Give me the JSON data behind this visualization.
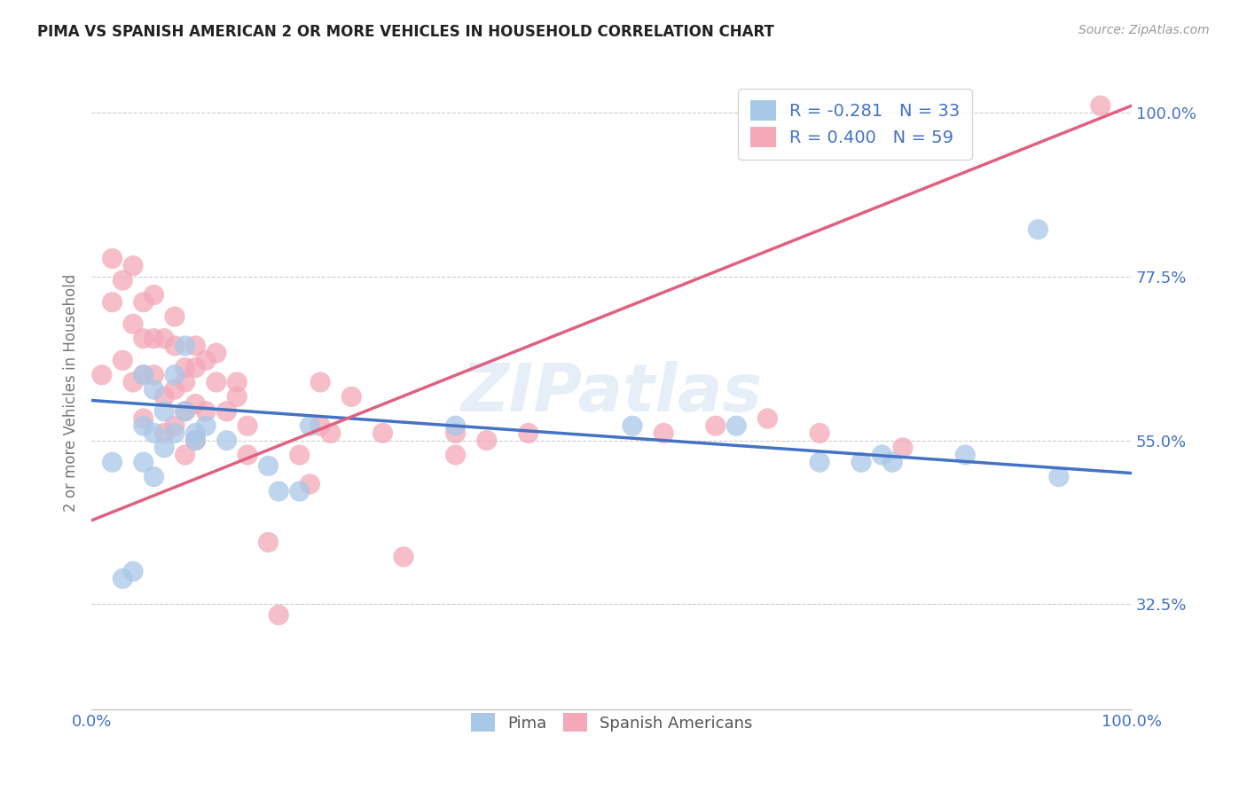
{
  "title": "PIMA VS SPANISH AMERICAN 2 OR MORE VEHICLES IN HOUSEHOLD CORRELATION CHART",
  "source_text": "Source: ZipAtlas.com",
  "ylabel": "2 or more Vehicles in Household",
  "watermark": "ZIPatlas",
  "legend_pima_r": "R = -0.281",
  "legend_pima_n": "N = 33",
  "legend_spanish_r": "R = 0.400",
  "legend_spanish_n": "N = 59",
  "pima_color": "#a8c8e8",
  "spanish_color": "#f4a8b8",
  "pima_line_color": "#4472c4",
  "spanish_line_color": "#e06080",
  "grid_color": "#cccccc",
  "tick_color": "#4472c4",
  "axis_label_color": "#777777",
  "ytick_values": [
    0.325,
    0.55,
    0.775,
    1.0
  ],
  "ytick_labels": [
    "32.5%",
    "55.0%",
    "77.5%",
    "100.0%"
  ],
  "xlim": [
    0.0,
    1.0
  ],
  "ylim": [
    0.18,
    1.05
  ],
  "pima_scatter_x": [
    0.02,
    0.03,
    0.04,
    0.05,
    0.05,
    0.05,
    0.06,
    0.06,
    0.06,
    0.07,
    0.07,
    0.08,
    0.08,
    0.09,
    0.09,
    0.1,
    0.1,
    0.11,
    0.13,
    0.17,
    0.18,
    0.2,
    0.21,
    0.35,
    0.52,
    0.62,
    0.7,
    0.74,
    0.76,
    0.77,
    0.84,
    0.91,
    0.93
  ],
  "pima_scatter_y": [
    0.52,
    0.36,
    0.37,
    0.64,
    0.57,
    0.52,
    0.62,
    0.56,
    0.5,
    0.59,
    0.54,
    0.64,
    0.56,
    0.68,
    0.59,
    0.56,
    0.55,
    0.57,
    0.55,
    0.515,
    0.48,
    0.48,
    0.57,
    0.57,
    0.57,
    0.57,
    0.52,
    0.52,
    0.53,
    0.52,
    0.53,
    0.84,
    0.5
  ],
  "spanish_scatter_x": [
    0.01,
    0.02,
    0.02,
    0.03,
    0.03,
    0.04,
    0.04,
    0.04,
    0.05,
    0.05,
    0.05,
    0.05,
    0.06,
    0.06,
    0.06,
    0.07,
    0.07,
    0.07,
    0.08,
    0.08,
    0.08,
    0.09,
    0.09,
    0.09,
    0.1,
    0.1,
    0.1,
    0.11,
    0.11,
    0.12,
    0.13,
    0.14,
    0.15,
    0.17,
    0.18,
    0.2,
    0.21,
    0.22,
    0.23,
    0.25,
    0.3,
    0.35,
    0.08,
    0.09,
    0.1,
    0.12,
    0.14,
    0.15,
    0.22,
    0.28,
    0.35,
    0.38,
    0.42,
    0.55,
    0.6,
    0.65,
    0.7,
    0.78,
    0.97
  ],
  "spanish_scatter_y": [
    0.64,
    0.74,
    0.8,
    0.77,
    0.66,
    0.79,
    0.71,
    0.63,
    0.74,
    0.69,
    0.64,
    0.58,
    0.75,
    0.69,
    0.64,
    0.69,
    0.61,
    0.56,
    0.68,
    0.62,
    0.57,
    0.63,
    0.59,
    0.53,
    0.65,
    0.6,
    0.55,
    0.66,
    0.59,
    0.63,
    0.59,
    0.61,
    0.53,
    0.41,
    0.31,
    0.53,
    0.49,
    0.63,
    0.56,
    0.61,
    0.39,
    0.53,
    0.72,
    0.65,
    0.68,
    0.67,
    0.63,
    0.57,
    0.57,
    0.56,
    0.56,
    0.55,
    0.56,
    0.56,
    0.57,
    0.58,
    0.56,
    0.54,
    1.01
  ],
  "pima_trend_x": [
    0.0,
    1.0
  ],
  "pima_trend_y": [
    0.605,
    0.505
  ],
  "spanish_trend_x": [
    0.0,
    1.0
  ],
  "spanish_trend_y": [
    0.44,
    1.01
  ]
}
